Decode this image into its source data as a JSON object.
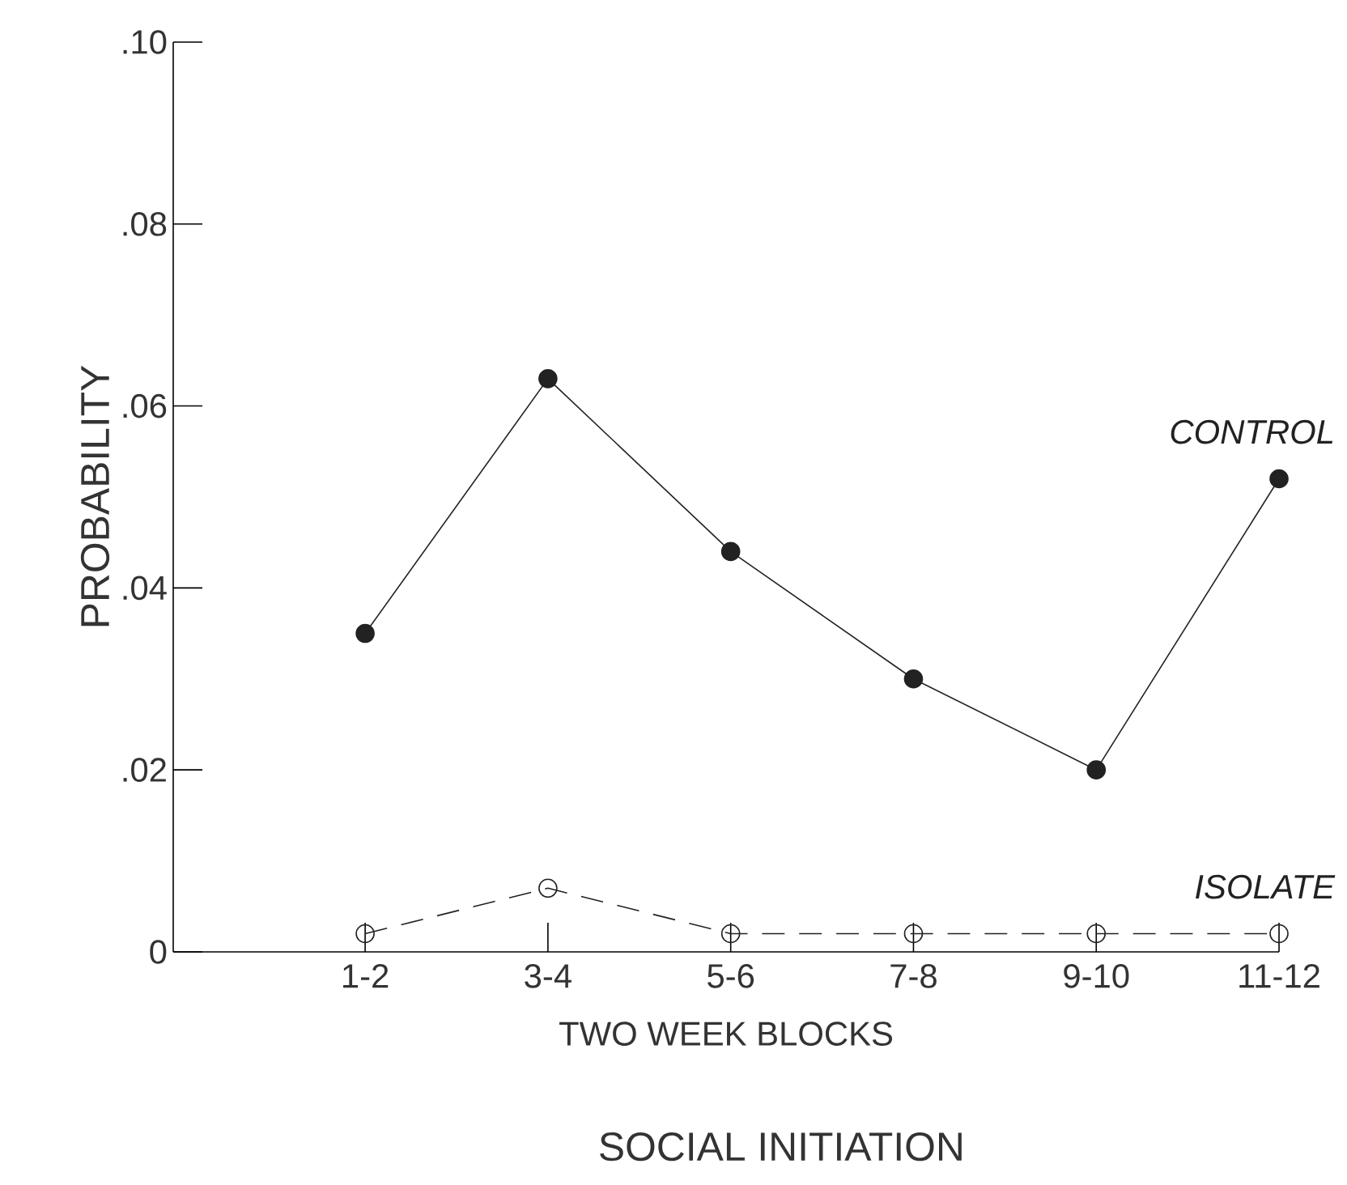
{
  "chart_data": {
    "type": "line",
    "title": "SOCIAL INITIATION",
    "xlabel": "TWO WEEK BLOCKS",
    "ylabel": "PROBABILITY",
    "categories": [
      "1-2",
      "3-4",
      "5-6",
      "7-8",
      "9-10",
      "11-12"
    ],
    "series": [
      {
        "name": "CONTROL",
        "color": "#222222",
        "values": [
          0.035,
          0.063,
          0.044,
          0.03,
          0.02,
          0.052
        ],
        "marker": "circle",
        "line_style": "solid"
      },
      {
        "name": "ISOLATE",
        "color": "#222222",
        "values": [
          0.002,
          0.007,
          0.002,
          0.002,
          0.002,
          0.002
        ],
        "marker": "open circle",
        "line_style": "dashed"
      }
    ],
    "ylim": [
      0,
      0.1
    ],
    "yticks": [
      {
        "value": 0,
        "label": "0"
      },
      {
        "value": 0.02,
        "label": ".02"
      },
      {
        "value": 0.04,
        "label": ".04"
      },
      {
        "value": 0.06,
        "label": ".06"
      },
      {
        "value": 0.08,
        "label": ".08"
      },
      {
        "value": 0.1,
        "label": ".10"
      }
    ],
    "grid": false
  }
}
